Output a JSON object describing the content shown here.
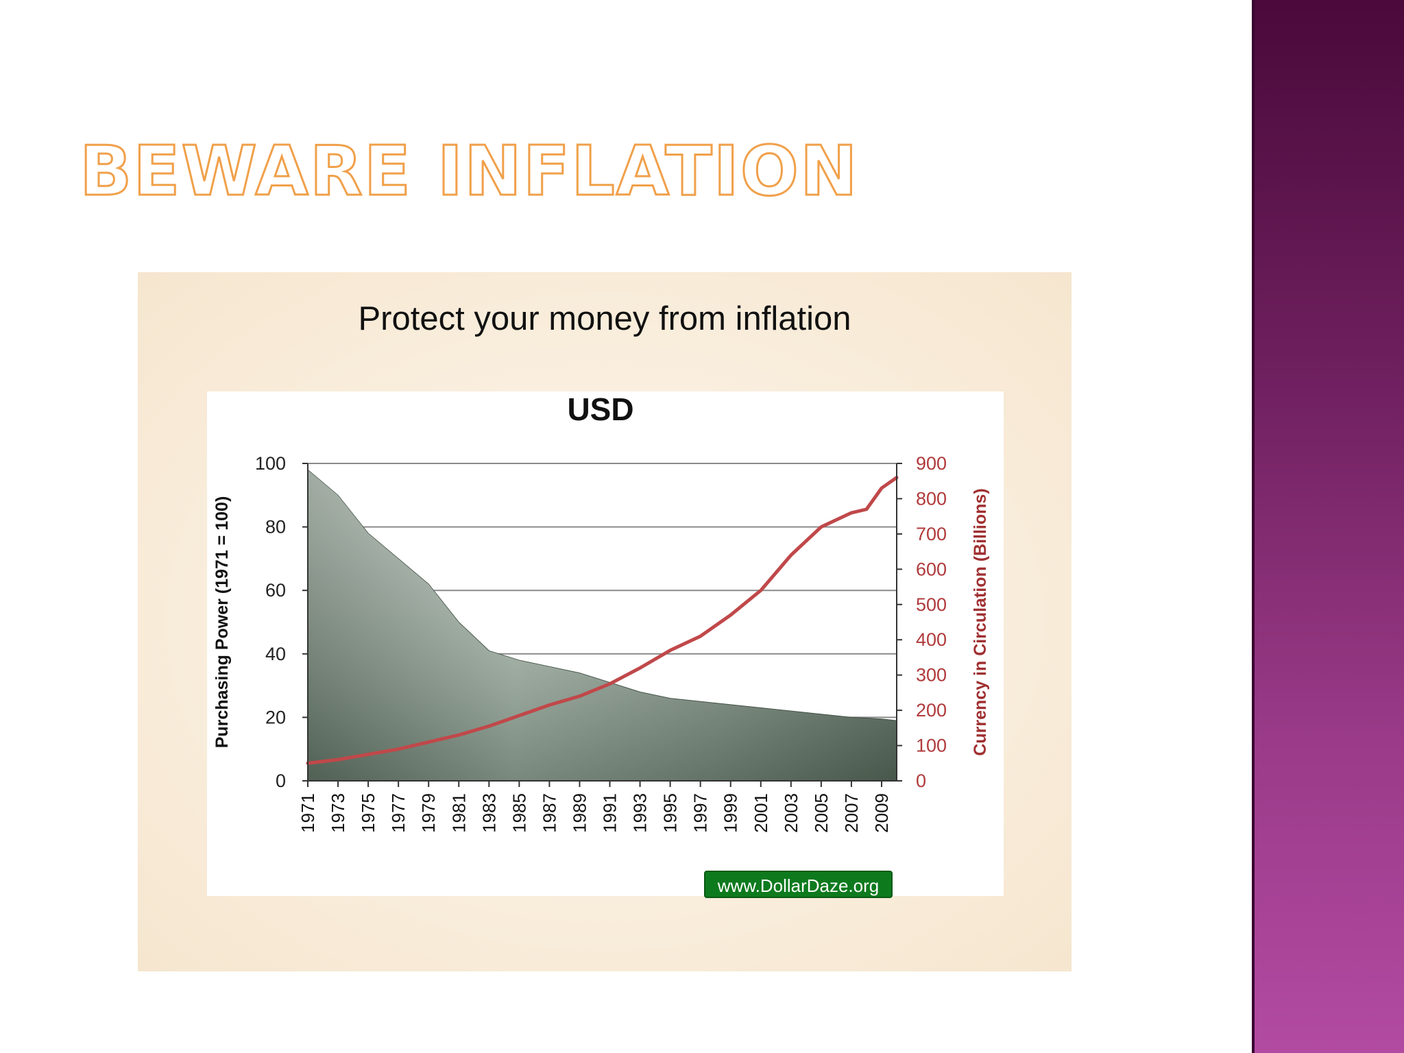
{
  "slide": {
    "title": "BEWARE INFLATION",
    "figure_title": "Protect your money from inflation",
    "source_badge": "www.DollarDaze.org",
    "colors": {
      "side_band": "#7a2a6a",
      "title_outline": "#f0a04a",
      "line_series": "#c0484a",
      "source_badge": "#0e7a1e"
    }
  },
  "chart_data": {
    "type": "area",
    "title": "USD",
    "ylabel": "Purchasing Power (1971 = 100)",
    "ylabel_right": "Currency in Circulation (Billions)",
    "x_ticks": [
      "1971",
      "1973",
      "1975",
      "1977",
      "1979",
      "1981",
      "1983",
      "1985",
      "1987",
      "1989",
      "1991",
      "1993",
      "1995",
      "1997",
      "1999",
      "2001",
      "2003",
      "2005",
      "2007",
      "2009"
    ],
    "y_ticks": [
      0,
      20,
      40,
      60,
      80,
      100
    ],
    "y_right_ticks": [
      0,
      100,
      200,
      300,
      400,
      500,
      600,
      700,
      800,
      900
    ],
    "ylim": [
      0,
      100
    ],
    "ylim_right": [
      0,
      900
    ],
    "xlim": [
      1971,
      2010
    ],
    "grid": true,
    "series": [
      {
        "name": "Purchasing Power",
        "axis": "left",
        "kind": "area",
        "x": [
          1971,
          1973,
          1975,
          1977,
          1979,
          1981,
          1983,
          1985,
          1987,
          1989,
          1991,
          1993,
          1995,
          1997,
          1999,
          2001,
          2003,
          2005,
          2007,
          2009,
          2010
        ],
        "values": [
          98,
          90,
          78,
          70,
          62,
          50,
          41,
          38,
          36,
          34,
          31,
          28,
          26,
          25,
          24,
          23,
          22,
          21,
          20,
          19.5,
          19
        ]
      },
      {
        "name": "Currency in Circulation",
        "axis": "right",
        "kind": "line",
        "color": "#c0484a",
        "x": [
          1971,
          1973,
          1975,
          1977,
          1979,
          1981,
          1983,
          1985,
          1987,
          1989,
          1991,
          1993,
          1995,
          1997,
          1999,
          2001,
          2003,
          2005,
          2007,
          2008,
          2009,
          2010
        ],
        "values": [
          50,
          60,
          75,
          90,
          110,
          130,
          155,
          185,
          215,
          240,
          275,
          320,
          370,
          410,
          470,
          540,
          640,
          720,
          760,
          770,
          830,
          860
        ]
      }
    ]
  }
}
